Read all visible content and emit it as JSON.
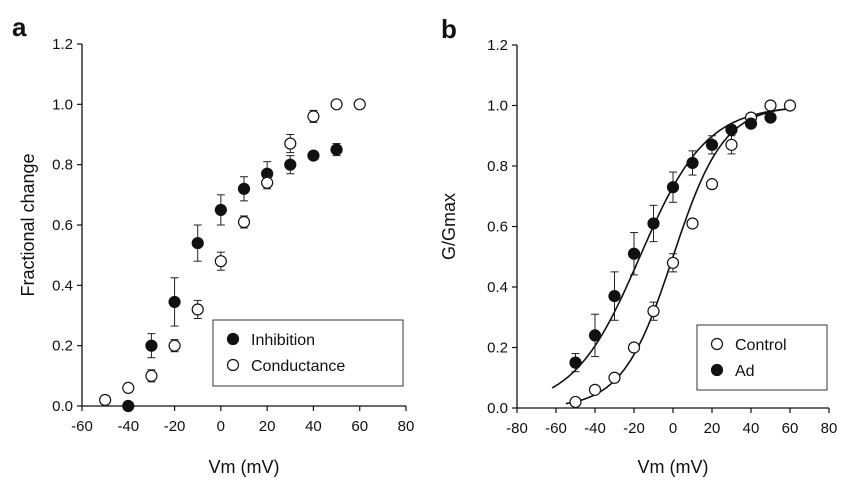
{
  "chart_data": [
    {
      "type": "scatter",
      "panel_label": "a",
      "xlabel": "Vm (mV)",
      "ylabel": "Fractional change",
      "xlim": [
        -60,
        80
      ],
      "ylim": [
        0,
        1.2
      ],
      "xticks": [
        -60,
        -40,
        -20,
        0,
        20,
        40,
        60,
        80
      ],
      "yticks": [
        0.0,
        0.2,
        0.4,
        0.6,
        0.8,
        1.0,
        1.2
      ],
      "xtick_labels": [
        "-60",
        "-40",
        "-20",
        "0",
        "20",
        "40",
        "60",
        "80"
      ],
      "ytick_labels": [
        "0.0",
        "0.2",
        "0.4",
        "0.6",
        "0.8",
        "1.0",
        "1.2"
      ],
      "grid": false,
      "legend_position": "bottom-right",
      "series": [
        {
          "name": "Inhibition",
          "marker": "filled",
          "x": [
            -40,
            -30,
            -20,
            -10,
            0,
            10,
            20,
            30,
            40,
            50
          ],
          "y": [
            0.0,
            0.2,
            0.345,
            0.54,
            0.65,
            0.72,
            0.77,
            0.8,
            0.83,
            0.85
          ],
          "err": [
            0.0,
            0.04,
            0.08,
            0.06,
            0.05,
            0.04,
            0.04,
            0.03,
            0.01,
            0.02
          ]
        },
        {
          "name": "Conductance",
          "marker": "open",
          "x": [
            -50,
            -40,
            -30,
            -20,
            -10,
            0,
            10,
            20,
            30,
            40,
            50,
            60
          ],
          "y": [
            0.02,
            0.06,
            0.1,
            0.2,
            0.32,
            0.48,
            0.61,
            0.74,
            0.87,
            0.96,
            1.0,
            1.0
          ],
          "err": [
            0.0,
            0.0,
            0.02,
            0.02,
            0.03,
            0.03,
            0.02,
            0.02,
            0.03,
            0.02,
            0.0,
            0.0
          ]
        }
      ]
    },
    {
      "type": "scatter",
      "panel_label": "b",
      "xlabel": "Vm (mV)",
      "ylabel": "G/Gmax",
      "xlim": [
        -80,
        80
      ],
      "ylim": [
        0,
        1.2
      ],
      "xticks": [
        -80,
        -60,
        -40,
        -20,
        0,
        20,
        40,
        60,
        80
      ],
      "yticks": [
        0.0,
        0.2,
        0.4,
        0.6,
        0.8,
        1.0,
        1.2
      ],
      "xtick_labels": [
        "-80",
        "-60",
        "-40",
        "-20",
        "0",
        "20",
        "40",
        "60",
        "80"
      ],
      "ytick_labels": [
        "0.0",
        "0.2",
        "0.4",
        "0.6",
        "0.8",
        "1.0",
        "1.2"
      ],
      "grid": false,
      "legend_position": "bottom-right",
      "series": [
        {
          "name": "Control",
          "marker": "open",
          "x": [
            -50,
            -40,
            -30,
            -20,
            -10,
            0,
            10,
            20,
            30,
            40,
            50,
            60
          ],
          "y": [
            0.02,
            0.06,
            0.1,
            0.2,
            0.32,
            0.48,
            0.61,
            0.74,
            0.87,
            0.96,
            1.0,
            1.0
          ],
          "err": [
            0.0,
            0.0,
            0.0,
            0.0,
            0.03,
            0.03,
            0.0,
            0.0,
            0.03,
            0.0,
            0.0,
            0.0
          ],
          "fit": {
            "model": "boltzmann",
            "x_range": [
              -55,
              60
            ],
            "v_half": 0,
            "slope": 13
          }
        },
        {
          "name": "Ad",
          "marker": "filled",
          "x": [
            -50,
            -40,
            -30,
            -20,
            -10,
            0,
            10,
            20,
            30,
            40,
            50
          ],
          "y": [
            0.15,
            0.24,
            0.37,
            0.51,
            0.61,
            0.73,
            0.81,
            0.87,
            0.92,
            0.94,
            0.96
          ],
          "err": [
            0.03,
            0.07,
            0.08,
            0.07,
            0.06,
            0.05,
            0.04,
            0.03,
            0.01,
            0.01,
            0.01
          ],
          "fit": {
            "model": "boltzmann",
            "x_range": [
              -62,
              60
            ],
            "v_half": -17,
            "slope": 17
          }
        }
      ]
    }
  ]
}
